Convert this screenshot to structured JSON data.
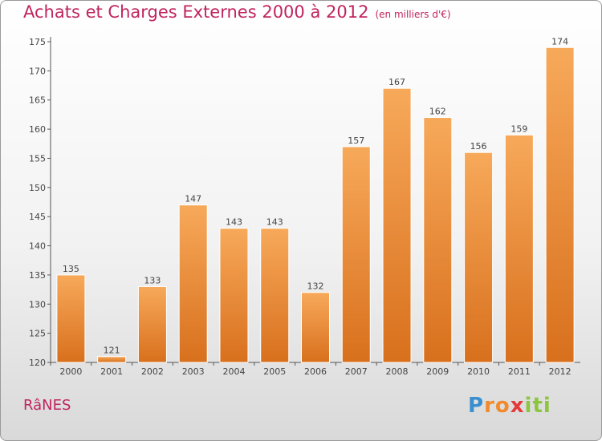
{
  "header": {
    "title": "Achats et Charges Externes 2000 à 2012",
    "unit": "(en milliers d'€)"
  },
  "footer": {
    "town": "RâNES",
    "logo": [
      "P",
      "r",
      "o",
      "x",
      "i",
      "t",
      "i"
    ]
  },
  "colors": {
    "title": "#c0245e",
    "bar_top": "#f7a95a",
    "bar_bottom": "#d8701d",
    "logo": [
      "#3a8fd1",
      "#f08a2c",
      "#f08a2c",
      "#e43a3a",
      "#8cc63f",
      "#8cc63f",
      "#8cc63f"
    ]
  },
  "chart_data": {
    "type": "bar",
    "title": "Achats et Charges Externes 2000 à 2012",
    "categories": [
      "2000",
      "2001",
      "2002",
      "2003",
      "2004",
      "2005",
      "2006",
      "2007",
      "2008",
      "2009",
      "2010",
      "2011",
      "2012"
    ],
    "values": [
      135,
      121,
      133,
      147,
      143,
      143,
      132,
      157,
      167,
      162,
      156,
      159,
      174
    ],
    "ylim": [
      120,
      175
    ],
    "yticks": [
      120,
      125,
      130,
      135,
      140,
      145,
      150,
      155,
      160,
      165,
      170,
      175
    ],
    "grid": false
  }
}
